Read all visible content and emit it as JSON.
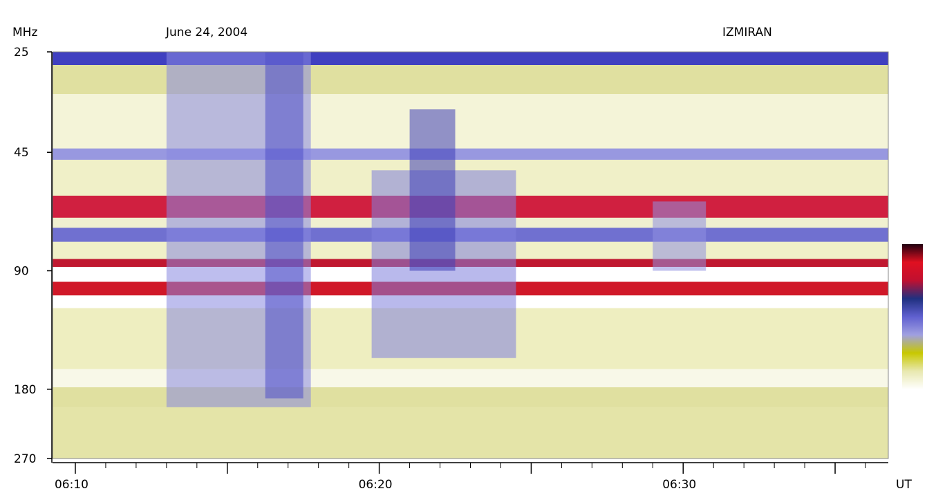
{
  "chart_data": {
    "type": "heatmap",
    "title": "June 24, 2004",
    "observatory": "IZMIRAN",
    "ylabel": "MHz",
    "xlabel": "UT",
    "y_scale": "log",
    "y_ticks": [
      25,
      45,
      90,
      180,
      270
    ],
    "x_ticks": [
      "06:10",
      "06:20",
      "06:30"
    ],
    "x_range_minutes": [
      "06:09:15",
      "06:36:45"
    ],
    "colorbar": {
      "colors": [
        "#ffffff",
        "#e8e8b0",
        "#c8c800",
        "#a0a0e0",
        "#6060d0",
        "#203080",
        "#c01030",
        "#e01020",
        "#200010"
      ]
    },
    "background_bands_mhz": [
      {
        "from": 25,
        "to": 27,
        "color": "#4040c0"
      },
      {
        "from": 27,
        "to": 32,
        "color": "#e0e0a0"
      },
      {
        "from": 32,
        "to": 44,
        "color": "#f4f4d8"
      },
      {
        "from": 44,
        "to": 47,
        "color": "#9898e0"
      },
      {
        "from": 47,
        "to": 58,
        "color": "#f0f0c8"
      },
      {
        "from": 58,
        "to": 66,
        "color": "#d02040"
      },
      {
        "from": 66,
        "to": 70,
        "color": "#f0f0d0"
      },
      {
        "from": 70,
        "to": 76,
        "color": "#7070d0"
      },
      {
        "from": 76,
        "to": 84,
        "color": "#f0f0c8"
      },
      {
        "from": 84,
        "to": 88,
        "color": "#c01830"
      },
      {
        "from": 88,
        "to": 96,
        "color": "#ffffff"
      },
      {
        "from": 96,
        "to": 104,
        "color": "#d01828"
      },
      {
        "from": 104,
        "to": 112,
        "color": "#ffffff"
      },
      {
        "from": 112,
        "to": 160,
        "color": "#eeeec0"
      },
      {
        "from": 160,
        "to": 178,
        "color": "#f8f8e8"
      },
      {
        "from": 178,
        "to": 200,
        "color": "#e0e0a0"
      },
      {
        "from": 200,
        "to": 270,
        "color": "#e4e4a8"
      }
    ],
    "bursts": [
      {
        "t_start": "06:13:00",
        "t_end": "06:17:45",
        "f_low": 25,
        "f_high": 200,
        "color": "#8888e0"
      },
      {
        "t_start": "06:16:15",
        "t_end": "06:17:30",
        "f_low": 25,
        "f_high": 190,
        "color": "#5050c8"
      },
      {
        "t_start": "06:19:45",
        "t_end": "06:24:30",
        "f_low": 50,
        "f_high": 150,
        "color": "#8080dc"
      },
      {
        "t_start": "06:21:00",
        "t_end": "06:22:30",
        "f_low": 35,
        "f_high": 90,
        "color": "#4040b8"
      },
      {
        "t_start": "06:29:00",
        "t_end": "06:30:45",
        "f_low": 60,
        "f_high": 90,
        "color": "#9090e0"
      }
    ]
  }
}
